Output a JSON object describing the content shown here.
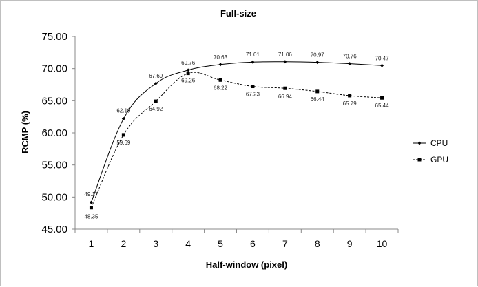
{
  "chart_data": {
    "type": "line",
    "title": "Full-size",
    "xlabel": "Half-window (pixel)",
    "ylabel": "RCMP (%)",
    "x": [
      1,
      2,
      3,
      4,
      5,
      6,
      7,
      8,
      9,
      10
    ],
    "ylim": [
      45,
      75
    ],
    "yticks": [
      "45.00",
      "50.00",
      "55.00",
      "60.00",
      "65.00",
      "70.00",
      "75.00"
    ],
    "grid": false,
    "legend": "right",
    "series": [
      {
        "name": "CPU",
        "marker": "diamond",
        "line_style": "solid",
        "smooth": true,
        "color": "#000000",
        "values": [
          49.17,
          62.19,
          67.69,
          69.76,
          70.63,
          71.01,
          71.06,
          70.97,
          70.76,
          70.47
        ],
        "labels": [
          "49.17",
          "62.19",
          "67.69",
          "69.76",
          "70.63",
          "71.01",
          "71.06",
          "70.97",
          "70.76",
          "70.47"
        ]
      },
      {
        "name": "GPU",
        "marker": "square",
        "line_style": "dashed",
        "smooth": true,
        "color": "#000000",
        "values": [
          48.35,
          59.69,
          64.92,
          69.26,
          68.22,
          67.23,
          66.94,
          66.44,
          65.79,
          65.44
        ],
        "labels": [
          "48.35",
          "59.69",
          "64.92",
          "69.26",
          "68.22",
          "67.23",
          "66.94",
          "66.44",
          "65.79",
          "65.44"
        ]
      }
    ]
  }
}
